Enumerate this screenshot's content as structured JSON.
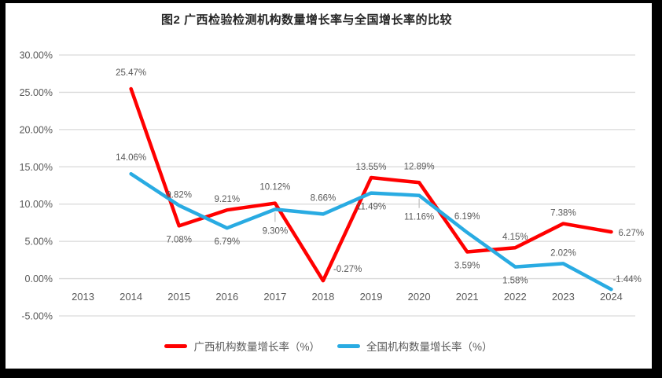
{
  "colors": {
    "frame": "#000000",
    "background": "#FFFFFF",
    "gridline": "#D9D9D9",
    "leader_line": "#BFBFBF",
    "axis_text": "#595959",
    "data_label_text": "#595959",
    "title_text": "#262626",
    "series_guangxi": "#FF0000",
    "series_national": "#29ABE2"
  },
  "chart_data": {
    "type": "line",
    "title": "图2 广西检验检测机构数量增长率与全国增长率的比较",
    "categories": [
      "2013",
      "2014",
      "2015",
      "2016",
      "2017",
      "2018",
      "2019",
      "2020",
      "2021",
      "2022",
      "2023",
      "2024"
    ],
    "y_axis": {
      "min": -5,
      "max": 30,
      "step": 5,
      "ticks": [
        30,
        25,
        20,
        15,
        10,
        5,
        0,
        -5
      ],
      "tick_labels": [
        "30.00%",
        "25.00%",
        "20.00%",
        "15.00%",
        "10.00%",
        "5.00%",
        "0.00%",
        "-5.00%"
      ]
    },
    "grid": true,
    "legend_position": "bottom",
    "series": [
      {
        "name": "广西机构数量增长率（%）",
        "color": "#FF0000",
        "points": [
          {
            "x": "2014",
            "y": 25.47,
            "label": "25.47%",
            "pos": "above-far"
          },
          {
            "x": "2015",
            "y": 7.08,
            "label": "7.08%",
            "pos": "below"
          },
          {
            "x": "2016",
            "y": 9.21,
            "label": "9.21%",
            "pos": "above"
          },
          {
            "x": "2017",
            "y": 10.12,
            "label": "10.12%",
            "pos": "above-far"
          },
          {
            "x": "2018",
            "y": -0.27,
            "label": "-0.27%",
            "pos": "right"
          },
          {
            "x": "2019",
            "y": 13.55,
            "label": "13.55%",
            "pos": "above"
          },
          {
            "x": "2020",
            "y": 12.89,
            "label": "12.89%",
            "pos": "above-far"
          },
          {
            "x": "2021",
            "y": 3.59,
            "label": "3.59%",
            "pos": "below"
          },
          {
            "x": "2022",
            "y": 4.15,
            "label": "4.15%",
            "pos": "above"
          },
          {
            "x": "2023",
            "y": 7.38,
            "label": "7.38%",
            "pos": "above"
          },
          {
            "x": "2024",
            "y": 6.27,
            "label": "6.27%",
            "pos": "side"
          }
        ]
      },
      {
        "name": "全国机构数量增长率（%）",
        "color": "#29ABE2",
        "points": [
          {
            "x": "2014",
            "y": 14.06,
            "label": "14.06%",
            "pos": "above-far"
          },
          {
            "x": "2015",
            "y": 9.82,
            "label": "9.82%",
            "pos": "above"
          },
          {
            "x": "2016",
            "y": 6.79,
            "label": "6.79%",
            "pos": "below"
          },
          {
            "x": "2017",
            "y": 9.3,
            "label": "9.30%",
            "pos": "below-leader",
            "leader": true
          },
          {
            "x": "2018",
            "y": 8.66,
            "label": "8.66%",
            "pos": "above-far"
          },
          {
            "x": "2019",
            "y": 11.49,
            "label": "11.49%",
            "pos": "below"
          },
          {
            "x": "2020",
            "y": 11.16,
            "label": "11.16%",
            "pos": "below-leader",
            "leader": true
          },
          {
            "x": "2021",
            "y": 6.19,
            "label": "6.19%",
            "pos": "above-far"
          },
          {
            "x": "2022",
            "y": 1.58,
            "label": "1.58%",
            "pos": "below"
          },
          {
            "x": "2023",
            "y": 2.02,
            "label": "2.02%",
            "pos": "above"
          },
          {
            "x": "2024",
            "y": -1.44,
            "label": "-1.44%",
            "pos": "side-up"
          }
        ]
      }
    ]
  }
}
